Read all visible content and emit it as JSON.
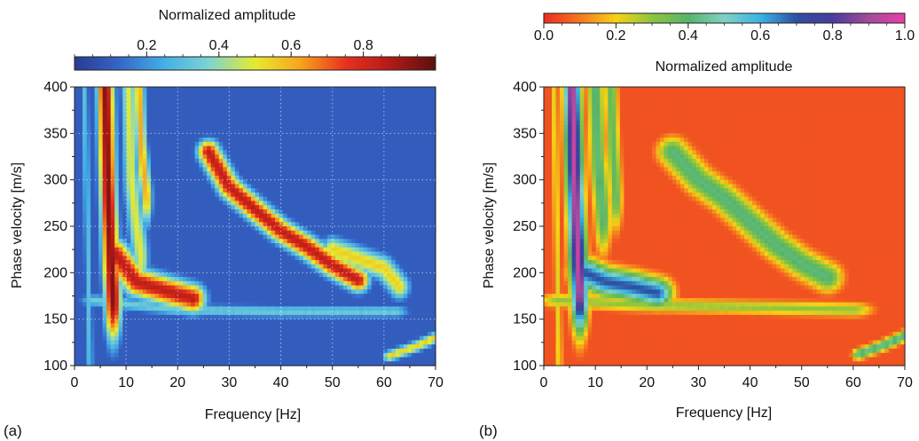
{
  "chart_data": [
    {
      "type": "heatmap",
      "panel_label": "(a)",
      "colorbar": {
        "title": "Normalized amplitude",
        "ticks": [
          "0.2",
          "0.4",
          "0.6",
          "0.8"
        ],
        "tick_values": [
          0.2,
          0.4,
          0.6,
          0.8
        ],
        "range": [
          0.0,
          1.0
        ],
        "position": "top",
        "colormap": [
          "#2a3a8f",
          "#3566c9",
          "#45b0e6",
          "#7fd4d0",
          "#e6ea2e",
          "#f7a51d",
          "#e8321e",
          "#b21a17",
          "#5c1010"
        ]
      },
      "xlabel": "Frequency [Hz]",
      "ylabel": "Phase velocity [m/s]",
      "xlim": [
        0,
        70
      ],
      "ylim": [
        100,
        400
      ],
      "x_ticks": [
        "0",
        "10",
        "20",
        "30",
        "40",
        "50",
        "60",
        "70"
      ],
      "y_ticks": [
        "100",
        "150",
        "200",
        "250",
        "300",
        "350",
        "400"
      ],
      "grid": true,
      "background_value": 0.1,
      "ridges": [
        {
          "points": [
            [
              6,
              400
            ],
            [
              6.5,
              290
            ],
            [
              7,
              220
            ],
            [
              7.5,
              170
            ]
          ],
          "amplitude": 0.95,
          "width": [
            1.6,
            45
          ]
        },
        {
          "points": [
            [
              8,
              220
            ],
            [
              12,
              190
            ],
            [
              18,
              180
            ],
            [
              23,
              172
            ]
          ],
          "amplitude": 0.85,
          "width": [
            2.5,
            16
          ]
        },
        {
          "points": [
            [
              10.5,
              400
            ],
            [
              11,
              300
            ],
            [
              12,
              250
            ],
            [
              13,
              215
            ]
          ],
          "amplitude": 0.5,
          "width": [
            1.4,
            40
          ]
        },
        {
          "points": [
            [
              12.5,
              400
            ],
            [
              13,
              330
            ],
            [
              14,
              280
            ]
          ],
          "amplitude": 0.62,
          "width": [
            1.1,
            30
          ]
        },
        {
          "points": [
            [
              26,
              330
            ],
            [
              30,
              292
            ],
            [
              35,
              268
            ],
            [
              40,
              245
            ],
            [
              45,
              228
            ],
            [
              50,
              208
            ],
            [
              55,
              192
            ]
          ],
          "amplitude": 0.85,
          "width": [
            2.2,
            13
          ]
        },
        {
          "points": [
            [
              50,
              225
            ],
            [
              55,
              215
            ],
            [
              60,
              205
            ],
            [
              63,
              185
            ]
          ],
          "amplitude": 0.55,
          "width": [
            2.0,
            14
          ]
        },
        {
          "points": [
            [
              4,
              170
            ],
            [
              20,
              160
            ],
            [
              40,
              158
            ],
            [
              62,
              158
            ]
          ],
          "amplitude": 0.35,
          "width": [
            3,
            7
          ]
        },
        {
          "points": [
            [
              61,
              110
            ],
            [
              66,
              120
            ],
            [
              70,
              130
            ]
          ],
          "amplitude": 0.55,
          "width": [
            1.2,
            6
          ]
        },
        {
          "points": [
            [
              2,
              400
            ],
            [
              2.5,
              250
            ],
            [
              3,
              100
            ]
          ],
          "amplitude": 0.3,
          "width": [
            0.7,
            80
          ]
        }
      ]
    },
    {
      "type": "heatmap",
      "panel_label": "(b)",
      "colorbar": {
        "title": "Normalized amplitude",
        "ticks": [
          "0.0",
          "0.2",
          "0.4",
          "0.6",
          "0.8",
          "1.0"
        ],
        "tick_values": [
          0.0,
          0.2,
          0.4,
          0.6,
          0.8,
          1.0
        ],
        "range": [
          0.0,
          1.0
        ],
        "position": "top",
        "colormap": [
          "#ee2b22",
          "#f4781f",
          "#f8d215",
          "#8cc63f",
          "#56b46a",
          "#7fd2c6",
          "#39b4e4",
          "#2f4fa2",
          "#4a3b9c",
          "#a24c9c",
          "#ec3ea7"
        ]
      },
      "xlabel": "Frequency [Hz]",
      "ylabel": "Phase velocity [m/s]",
      "xlim": [
        0,
        70
      ],
      "ylim": [
        100,
        400
      ],
      "x_ticks": [
        "0",
        "10",
        "20",
        "30",
        "40",
        "50",
        "60",
        "70"
      ],
      "y_ticks": [
        "100",
        "150",
        "200",
        "250",
        "300",
        "350",
        "400"
      ],
      "grid": false,
      "background_value": 0.05,
      "ridges": [
        {
          "points": [
            [
              5.5,
              400
            ],
            [
              6,
              300
            ],
            [
              6.5,
              230
            ],
            [
              7,
              180
            ]
          ],
          "amplitude": 0.95,
          "width": [
            1.6,
            45
          ]
        },
        {
          "points": [
            [
              8,
              200
            ],
            [
              12,
              190
            ],
            [
              17,
              185
            ],
            [
              22,
              178
            ]
          ],
          "amplitude": 0.7,
          "width": [
            3,
            16
          ]
        },
        {
          "points": [
            [
              10,
              400
            ],
            [
              10.5,
              320
            ],
            [
              11.5,
              260
            ]
          ],
          "amplitude": 0.42,
          "width": [
            1.6,
            40
          ]
        },
        {
          "points": [
            [
              13,
              400
            ],
            [
              13.5,
              330
            ],
            [
              14,
              280
            ]
          ],
          "amplitude": 0.38,
          "width": [
            1.3,
            35
          ]
        },
        {
          "points": [
            [
              25,
              330
            ],
            [
              30,
              300
            ],
            [
              35,
              280
            ],
            [
              40,
              255
            ],
            [
              45,
              230
            ],
            [
              50,
              210
            ],
            [
              55,
              195
            ]
          ],
          "amplitude": 0.42,
          "width": [
            3,
            16
          ]
        },
        {
          "points": [
            [
              3,
              170
            ],
            [
              20,
              165
            ],
            [
              45,
              162
            ],
            [
              60,
              160
            ]
          ],
          "amplitude": 0.3,
          "width": [
            4,
            8
          ]
        },
        {
          "points": [
            [
              61,
              112
            ],
            [
              66,
              122
            ],
            [
              70,
              132
            ]
          ],
          "amplitude": 0.45,
          "width": [
            1.2,
            6
          ]
        },
        {
          "points": [
            [
              2,
              400
            ],
            [
              2.5,
              250
            ],
            [
              3,
              100
            ]
          ],
          "amplitude": 0.22,
          "width": [
            0.7,
            80
          ]
        }
      ]
    }
  ]
}
